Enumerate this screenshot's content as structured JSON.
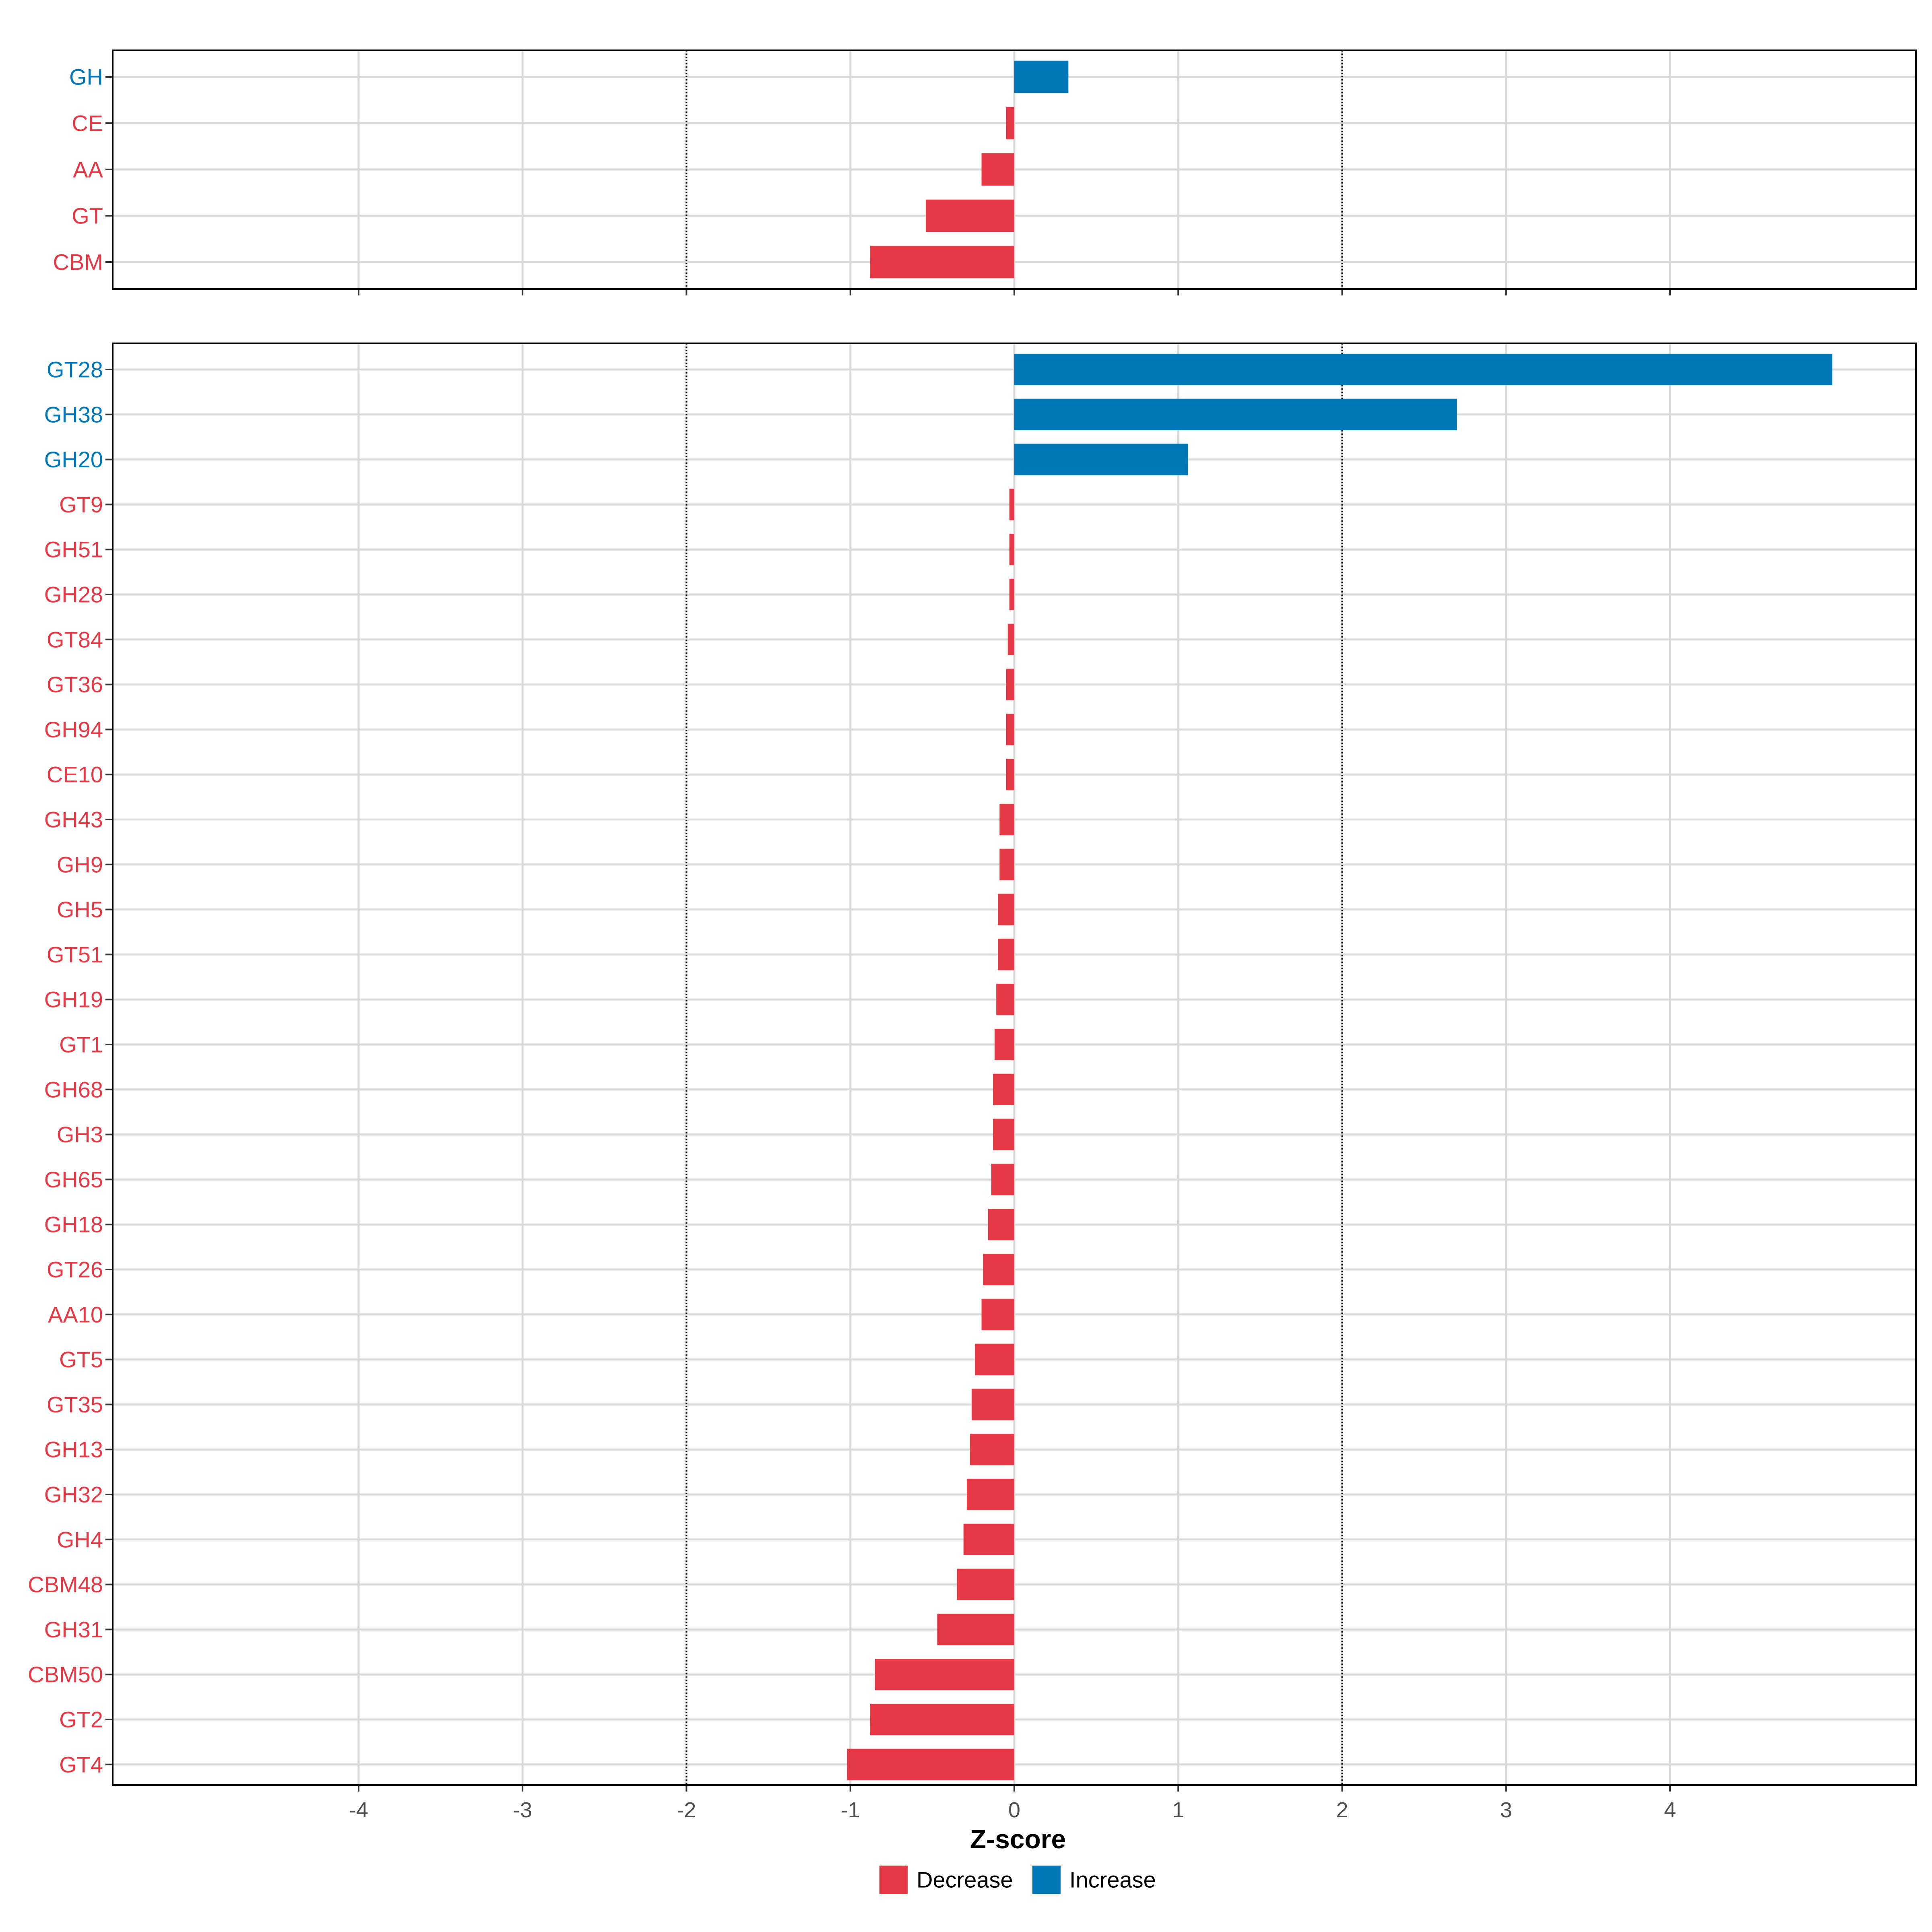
{
  "chart_data": {
    "type": "bar",
    "orientation": "horizontal",
    "xlabel": "Z-score",
    "xlim": [
      -5.5,
      5.5
    ],
    "x_ticks": [
      -4,
      -3,
      -2,
      -1,
      0,
      1,
      2,
      3,
      4
    ],
    "reference_lines": [
      -2,
      2
    ],
    "grid": true,
    "legend": {
      "placement": "bottom",
      "items": [
        {
          "label": "Decrease",
          "color": "#E63946"
        },
        {
          "label": "Increase",
          "color": "#0077B6"
        }
      ]
    },
    "colors": {
      "Decrease": "#E63946",
      "Increase": "#0077B6"
    },
    "panels": [
      {
        "categories": [
          "GH",
          "CE",
          "AA",
          "GT",
          "CBM"
        ],
        "values": [
          0.33,
          -0.05,
          -0.2,
          -0.54,
          -0.88
        ],
        "direction": [
          "Increase",
          "Decrease",
          "Decrease",
          "Decrease",
          "Decrease"
        ]
      },
      {
        "categories": [
          "GT28",
          "GH38",
          "GH20",
          "GT9",
          "GH51",
          "GH28",
          "GT84",
          "GT36",
          "GH94",
          "CE10",
          "GH43",
          "GH9",
          "GH5",
          "GT51",
          "GH19",
          "GT1",
          "GH68",
          "GH3",
          "GH65",
          "GH18",
          "GT26",
          "AA10",
          "GT5",
          "GT35",
          "GH13",
          "GH32",
          "GH4",
          "CBM48",
          "GH31",
          "CBM50",
          "GT2",
          "GT4"
        ],
        "values": [
          4.99,
          2.7,
          1.06,
          -0.03,
          -0.03,
          -0.03,
          -0.04,
          -0.05,
          -0.05,
          -0.05,
          -0.09,
          -0.09,
          -0.1,
          -0.1,
          -0.11,
          -0.12,
          -0.13,
          -0.13,
          -0.14,
          -0.16,
          -0.19,
          -0.2,
          -0.24,
          -0.26,
          -0.27,
          -0.29,
          -0.31,
          -0.35,
          -0.47,
          -0.85,
          -0.88,
          -1.02
        ],
        "direction": [
          "Increase",
          "Increase",
          "Increase",
          "Decrease",
          "Decrease",
          "Decrease",
          "Decrease",
          "Decrease",
          "Decrease",
          "Decrease",
          "Decrease",
          "Decrease",
          "Decrease",
          "Decrease",
          "Decrease",
          "Decrease",
          "Decrease",
          "Decrease",
          "Decrease",
          "Decrease",
          "Decrease",
          "Decrease",
          "Decrease",
          "Decrease",
          "Decrease",
          "Decrease",
          "Decrease",
          "Decrease",
          "Decrease",
          "Decrease",
          "Decrease",
          "Decrease"
        ]
      }
    ]
  }
}
